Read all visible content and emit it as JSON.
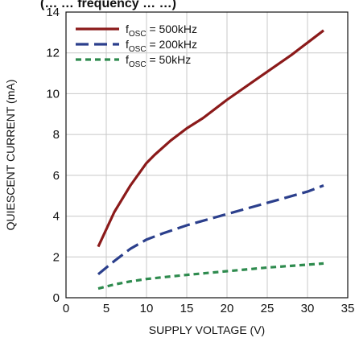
{
  "chart_data": {
    "type": "line",
    "title": "(… … frequency … …)",
    "xlabel": "SUPPLY VOLTAGE (V)",
    "ylabel": "QUIESCENT CURRENT (mA)",
    "xlim": [
      0,
      35
    ],
    "ylim": [
      0,
      14
    ],
    "xticks": [
      "0",
      "5",
      "10",
      "15",
      "20",
      "25",
      "30",
      "35"
    ],
    "yticks": [
      "0",
      "2",
      "4",
      "6",
      "8",
      "10",
      "12",
      "14"
    ],
    "grid": true,
    "legend_position": "top-left",
    "series": [
      {
        "name_main": "f",
        "name_sub": "OSC",
        "name_rest": " = 500kHz",
        "color": "#8B1A1A",
        "dash": "solid",
        "x": [
          4,
          6,
          8,
          10,
          11,
          13,
          15,
          17,
          20,
          24,
          28,
          32
        ],
        "y": [
          2.5,
          4.2,
          5.5,
          6.6,
          7.0,
          7.7,
          8.3,
          8.8,
          9.7,
          10.8,
          11.9,
          13.1
        ]
      },
      {
        "name_main": "f",
        "name_sub": "OSC",
        "name_rest": " = 200kHz",
        "color": "#2B3F8C",
        "dash": "long",
        "x": [
          4,
          6,
          8,
          10,
          12,
          15,
          20,
          25,
          30,
          32
        ],
        "y": [
          1.15,
          1.8,
          2.4,
          2.85,
          3.15,
          3.55,
          4.1,
          4.65,
          5.2,
          5.5
        ]
      },
      {
        "name_main": "f",
        "name_sub": "OSC",
        "name_rest": " = 50kHz",
        "color": "#2E8B4E",
        "dash": "short",
        "x": [
          4,
          6,
          8,
          10,
          12,
          15,
          20,
          25,
          30,
          32
        ],
        "y": [
          0.45,
          0.65,
          0.8,
          0.92,
          1.0,
          1.12,
          1.3,
          1.48,
          1.62,
          1.68
        ]
      }
    ]
  }
}
